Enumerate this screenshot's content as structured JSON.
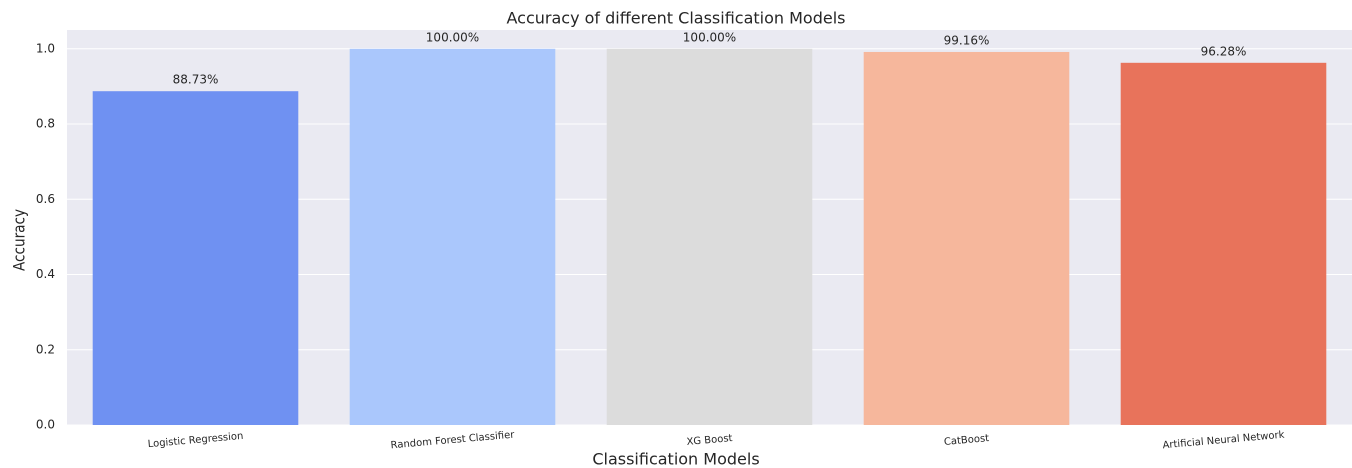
{
  "chart_data": {
    "type": "bar",
    "title": "Accuracy of different Classification Models",
    "x_label": "Classification Models",
    "y_label": "Accuracy",
    "categories": [
      "Logistic Regression",
      "Random Forest Classifier",
      "XG Boost",
      "CatBoost",
      "Artificial Neural Network"
    ],
    "values": [
      0.8873,
      1.0,
      1.0,
      0.9916,
      0.9628
    ],
    "value_labels": [
      "88.73%",
      "100.00%",
      "100.00%",
      "99.16%",
      "96.28%"
    ],
    "colors": [
      "#6f91f2",
      "#aac7fc",
      "#dcdcdc",
      "#f6b79c",
      "#e8735b"
    ],
    "ylim": [
      0,
      1.05
    ],
    "yticks": [
      {
        "value": 0,
        "label": "0.0"
      },
      0.2,
      0.4,
      0.6,
      0.8,
      {
        "value": 1.0,
        "label": "1.0"
      }
    ],
    "grid": true
  }
}
